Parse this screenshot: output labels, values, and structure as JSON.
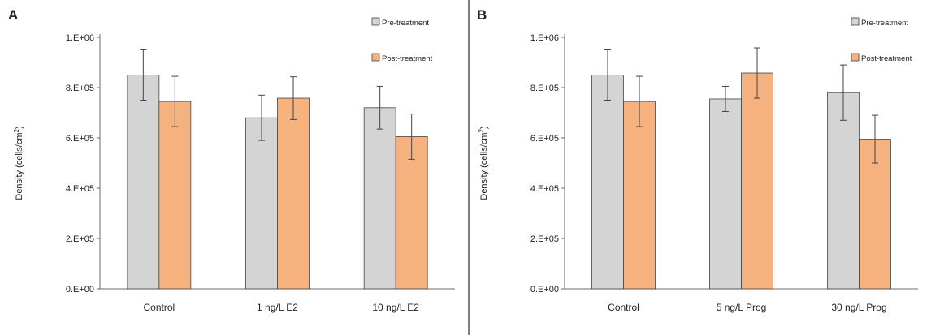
{
  "colors": {
    "pre": "#d4d4d4",
    "post": "#f5b27f",
    "bar_stroke": "#444444",
    "axis": "#6b6b6b",
    "error_bar": "#444444"
  },
  "chart_data": [
    {
      "type": "bar",
      "panel_label": "A",
      "ylabel_text": "Density (cells/cm",
      "ylabel_sup": "2",
      "ylabel_close": ")",
      "ylim": [
        0,
        1000000
      ],
      "yticks": [
        0,
        200000,
        400000,
        600000,
        800000,
        1000000
      ],
      "ytick_labels": [
        "0.E+00",
        "2.E+05",
        "4.E+05",
        "6.E+05",
        "8.E+05",
        "1.E+06"
      ],
      "categories": [
        "Control",
        "1 ng/L E2",
        "10 ng/L E2"
      ],
      "legend_position": "top-right",
      "series": [
        {
          "name": "Pre-treatment",
          "values": [
            850000,
            680000,
            720000
          ],
          "errors": [
            100000,
            90000,
            85000
          ]
        },
        {
          "name": "Post-treatment",
          "values": [
            745000,
            758000,
            605000
          ],
          "errors": [
            100000,
            85000,
            90000
          ]
        }
      ]
    },
    {
      "type": "bar",
      "panel_label": "B",
      "ylabel_text": "Density (cells/cm",
      "ylabel_sup": "2",
      "ylabel_close": ")",
      "ylim": [
        0,
        1000000
      ],
      "yticks": [
        0,
        200000,
        400000,
        600000,
        800000,
        1000000
      ],
      "ytick_labels": [
        "0.E+00",
        "2.E+05",
        "4.E+05",
        "6.E+05",
        "8.E+05",
        "1.E+06"
      ],
      "categories": [
        "Control",
        "5 ng/L Prog",
        "30 ng/L Prog"
      ],
      "legend_position": "top-right",
      "series": [
        {
          "name": "Pre-treatment",
          "values": [
            850000,
            755000,
            780000
          ],
          "errors": [
            100000,
            50000,
            110000
          ]
        },
        {
          "name": "Post-treatment",
          "values": [
            745000,
            858000,
            595000
          ],
          "errors": [
            100000,
            100000,
            95000
          ]
        }
      ]
    }
  ]
}
